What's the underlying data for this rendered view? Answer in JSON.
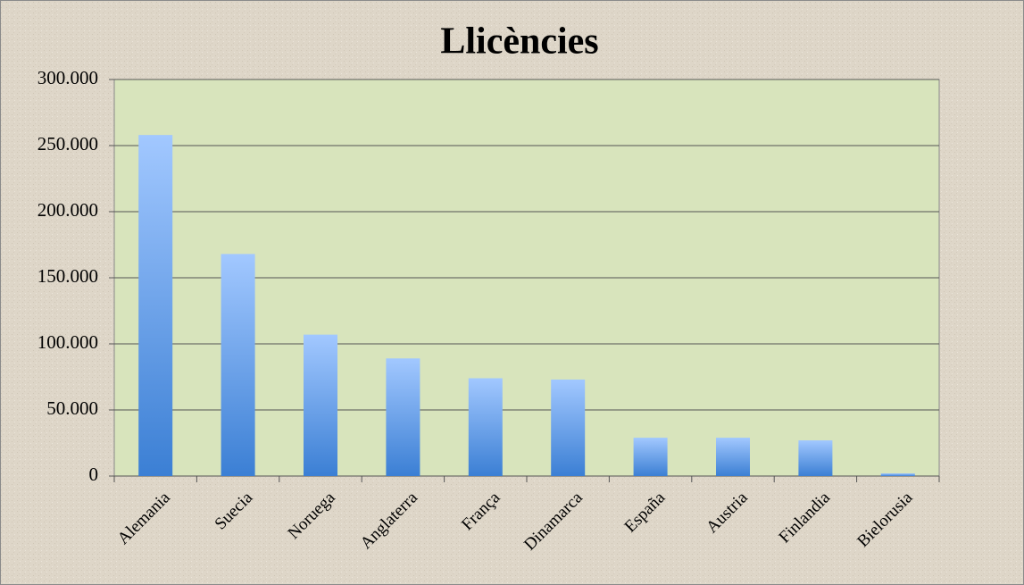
{
  "chart_data": {
    "type": "bar",
    "title": "Llicències",
    "categories": [
      "Alemania",
      "Suecia",
      "Noruega",
      "Anglaterra",
      "França",
      "Dinamarca",
      "España",
      "Austria",
      "Finlandia",
      "Bielorusia"
    ],
    "values": [
      258000,
      168000,
      107000,
      89000,
      74000,
      73000,
      29000,
      29000,
      27000,
      2000
    ],
    "ylim": [
      0,
      300000
    ],
    "yticks": [
      0,
      {
        "value": 50000,
        "label": "50.000"
      },
      {
        "value": 100000,
        "label": "100.000"
      },
      {
        "value": 150000,
        "label": "150.000"
      },
      {
        "value": 200000,
        "label": "200.000"
      },
      {
        "value": 250000,
        "label": "250.000"
      },
      {
        "value": 300000,
        "label": "300.000"
      }
    ],
    "grid": true
  }
}
